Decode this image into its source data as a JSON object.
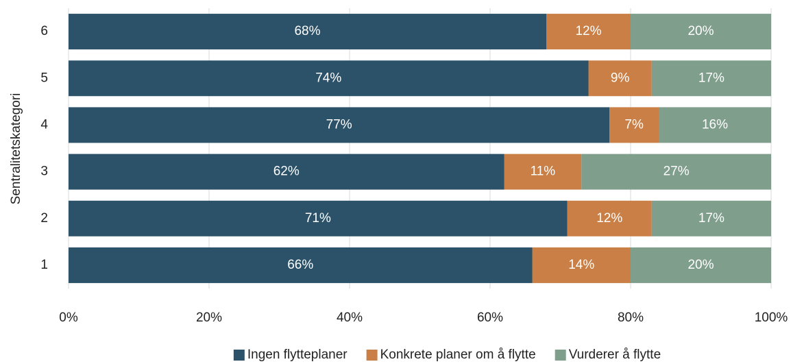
{
  "chart_data": {
    "type": "stacked-barh",
    "ylabel": "Sentralitetskategori",
    "categories": [
      "6",
      "5",
      "4",
      "3",
      "2",
      "1"
    ],
    "series": [
      {
        "name": "Ingen flytteplaner",
        "color": "#2b5269",
        "values": [
          68,
          74,
          77,
          62,
          71,
          66
        ],
        "value_labels": [
          "68%",
          "74%",
          "77%",
          "62%",
          "71%",
          "66%"
        ]
      },
      {
        "name": "Konkrete planer om å flytte",
        "color": "#c97f45",
        "values": [
          12,
          9,
          7,
          11,
          12,
          14
        ],
        "value_labels": [
          "12%",
          "9%",
          "7%",
          "11%",
          "12%",
          "14%"
        ]
      },
      {
        "name": "Vurderer å flytte",
        "color": "#7f9e8c",
        "values": [
          20,
          17,
          16,
          27,
          17,
          20
        ],
        "value_labels": [
          "20%",
          "17%",
          "16%",
          "27%",
          "17%",
          "20%"
        ]
      }
    ],
    "xlim": [
      0,
      100
    ],
    "xticks": [
      {
        "value": 0,
        "label": "0%"
      },
      {
        "value": 20,
        "label": "20%"
      },
      {
        "value": 40,
        "label": "40%"
      },
      {
        "value": 60,
        "label": "60%"
      },
      {
        "value": 80,
        "label": "80%"
      },
      {
        "value": 100,
        "label": "100%"
      }
    ],
    "grid": true,
    "legend": "bottom"
  }
}
